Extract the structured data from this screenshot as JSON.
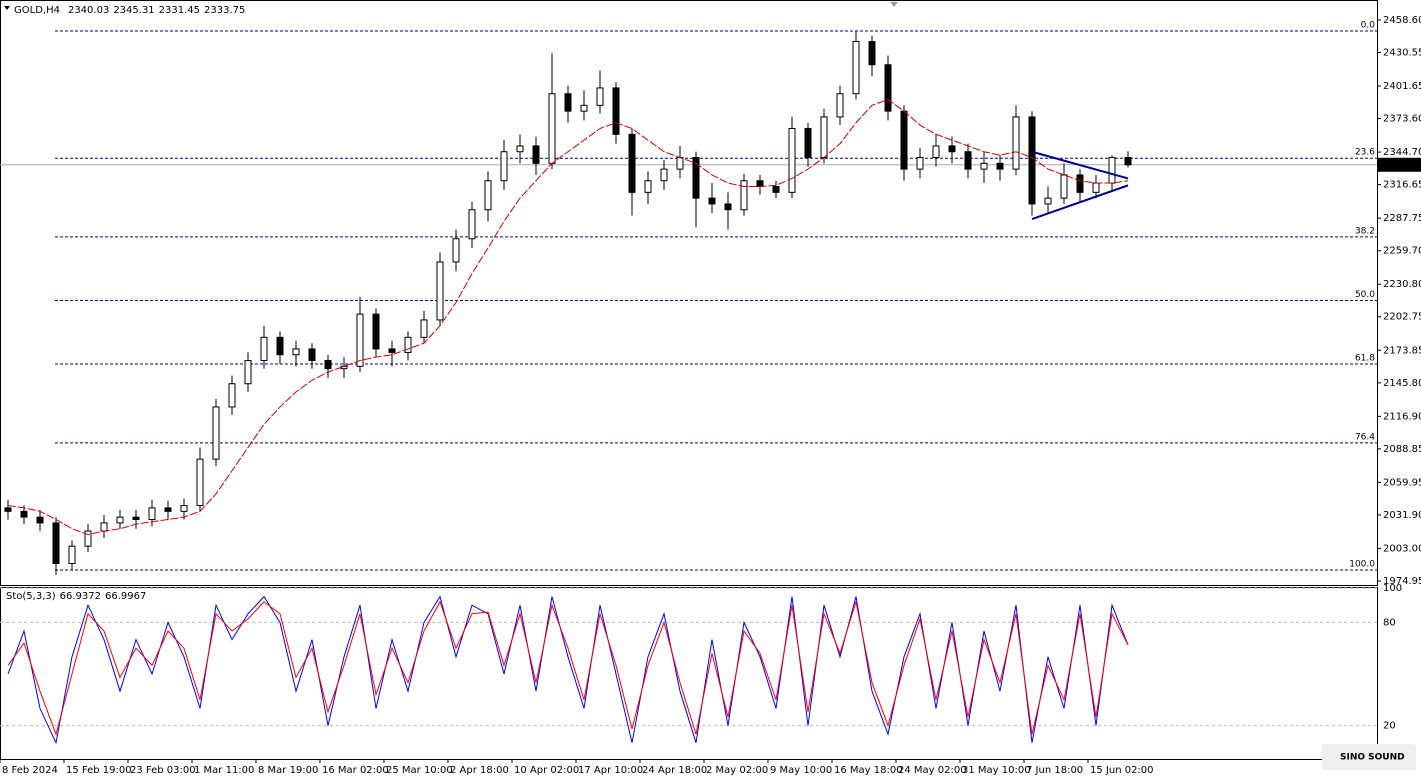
{
  "chart_data": {
    "type": "candlestick",
    "symbol": "GOLD,H4",
    "categories": [
      "8 Feb 2024",
      null,
      null,
      null,
      "15 Feb 19:00",
      null,
      null,
      null,
      "23 Feb 03:00",
      null,
      null,
      null,
      "1 Mar 11:00",
      null,
      null,
      null,
      "8 Mar 19:00",
      null,
      null,
      null,
      "16 Mar 02:00",
      null,
      null,
      null,
      "25 Mar 10:00",
      null,
      null,
      null,
      "2 Apr 18:00",
      null,
      null,
      null,
      "10 Apr 02:00",
      null,
      null,
      null,
      "17 Apr 10:00",
      null,
      null,
      null,
      "24 Apr 18:00",
      null,
      null,
      null,
      "2 May 02:00",
      null,
      null,
      null,
      "9 May 10:00",
      null,
      null,
      null,
      "16 May 18:00",
      null,
      null,
      null,
      "24 May 02:00",
      null,
      null,
      null,
      "31 May 10:00",
      null,
      null,
      null,
      "7 Jun 18:00",
      null,
      null,
      null,
      "15 Jun 02:00",
      null,
      null
    ],
    "open": [
      2038,
      2035,
      2030,
      2025,
      1990,
      2005,
      2018,
      2025,
      2030,
      2028,
      2038,
      2035,
      2040,
      2080,
      2125,
      2145,
      2165,
      2185,
      2170,
      2175,
      2165,
      2158,
      2160,
      2205,
      2175,
      2172,
      2185,
      2200,
      2250,
      2270,
      2295,
      2320,
      2345,
      2350,
      2335,
      2395,
      2380,
      2385,
      2400,
      2360,
      2310,
      2320,
      2330,
      2340,
      2305,
      2300,
      2295,
      2320,
      2315,
      2310,
      2365,
      2340,
      2375,
      2395,
      2440,
      2420,
      2380,
      2330,
      2340,
      2350,
      2345,
      2330,
      2335,
      2330,
      2375,
      2300,
      2305,
      2325,
      2310,
      2318,
      2340.03
    ],
    "high": [
      2045,
      2040,
      2036,
      2030,
      2010,
      2024,
      2032,
      2036,
      2036,
      2045,
      2044,
      2046,
      2090,
      2132,
      2152,
      2172,
      2195,
      2190,
      2182,
      2180,
      2170,
      2168,
      2220,
      2210,
      2182,
      2190,
      2208,
      2258,
      2278,
      2302,
      2328,
      2355,
      2360,
      2358,
      2430,
      2402,
      2398,
      2415,
      2405,
      2365,
      2328,
      2338,
      2350,
      2345,
      2318,
      2310,
      2326,
      2325,
      2320,
      2375,
      2370,
      2382,
      2402,
      2449,
      2445,
      2428,
      2385,
      2348,
      2360,
      2358,
      2352,
      2345,
      2342,
      2385,
      2380,
      2315,
      2335,
      2330,
      2325,
      2342,
      2345.31
    ],
    "low": [
      2028,
      2024,
      2018,
      1980,
      1985,
      2000,
      2012,
      2020,
      2020,
      2022,
      2028,
      2028,
      2035,
      2074,
      2118,
      2138,
      2158,
      2162,
      2160,
      2158,
      2150,
      2150,
      2155,
      2168,
      2160,
      2165,
      2180,
      2195,
      2242,
      2262,
      2285,
      2312,
      2335,
      2325,
      2330,
      2370,
      2372,
      2378,
      2352,
      2290,
      2300,
      2312,
      2322,
      2280,
      2292,
      2278,
      2290,
      2308,
      2305,
      2305,
      2332,
      2335,
      2368,
      2390,
      2410,
      2372,
      2320,
      2322,
      2332,
      2335,
      2322,
      2318,
      2320,
      2325,
      2290,
      2292,
      2300,
      2302,
      2305,
      2312,
      2331.45
    ],
    "close": [
      2035,
      2030,
      2025,
      1990,
      2005,
      2018,
      2025,
      2030,
      2028,
      2038,
      2035,
      2040,
      2080,
      2125,
      2145,
      2165,
      2185,
      2170,
      2175,
      2165,
      2158,
      2160,
      2205,
      2175,
      2172,
      2185,
      2200,
      2250,
      2270,
      2295,
      2320,
      2345,
      2350,
      2335,
      2395,
      2380,
      2385,
      2400,
      2360,
      2310,
      2320,
      2330,
      2340,
      2305,
      2300,
      2295,
      2320,
      2315,
      2310,
      2365,
      2340,
      2375,
      2395,
      2440,
      2420,
      2380,
      2330,
      2340,
      2350,
      2345,
      2330,
      2335,
      2330,
      2375,
      2300,
      2305,
      2325,
      2310,
      2318,
      2340,
      2333.75
    ],
    "ylim": [
      1971.5,
      2475.8
    ],
    "yticks": [
      {
        "value": 2458.6,
        "label": "2458.60"
      },
      2430.55,
      2401.65,
      {
        "value": 2373.6,
        "label": "2373.60"
      },
      {
        "value": 2344.7,
        "label": "2344.70"
      },
      2316.65,
      2287.75,
      {
        "value": 2259.7,
        "label": "2259.70"
      },
      {
        "value": 2230.8,
        "label": "2230.80"
      },
      2202.75,
      2173.85,
      {
        "value": 2145.8,
        "label": "2145.80"
      },
      {
        "value": 2116.9,
        "label": "2116.90"
      },
      2088.85,
      2059.95,
      {
        "value": 2031.9,
        "label": "2031.90"
      },
      {
        "value": 2003,
        "label": "2003.00"
      },
      1974.95
    ],
    "ma": {
      "color": "#cc0000",
      "values": [
        2040,
        2038,
        2035,
        2028,
        2020,
        2015,
        2018,
        2020,
        2024,
        2026,
        2028,
        2030,
        2035,
        2050,
        2070,
        2090,
        2110,
        2125,
        2138,
        2148,
        2155,
        2160,
        2165,
        2168,
        2170,
        2175,
        2180,
        2195,
        2215,
        2240,
        2262,
        2285,
        2305,
        2320,
        2335,
        2345,
        2355,
        2365,
        2370,
        2365,
        2355,
        2345,
        2340,
        2335,
        2325,
        2318,
        2315,
        2315,
        2316,
        2322,
        2330,
        2340,
        2352,
        2370,
        2385,
        2390,
        2380,
        2368,
        2360,
        2355,
        2350,
        2345,
        2342,
        2345,
        2340,
        2330,
        2325,
        2320,
        2318,
        2318,
        2320
      ]
    },
    "fib_color": "#00008b",
    "fib_levels": [
      {
        "label": "0.0",
        "value": 2449.1
      },
      {
        "label": "23.6",
        "value": 2339.4
      },
      {
        "label": "38.2",
        "value": 2271.6
      },
      {
        "label": "50.0",
        "value": 2216.8
      },
      {
        "label": "61.8",
        "value": 2162
      },
      {
        "label": "76.4",
        "value": 2094
      },
      {
        "label": "100.0",
        "value": 1984.4
      }
    ],
    "trendline_color": "#00008b",
    "trendlines": [
      {
        "x": [
          64,
          70
        ],
        "y": [
          2345,
          2322
        ]
      },
      {
        "x": [
          64,
          70
        ],
        "y": [
          2287,
          2316
        ]
      }
    ],
    "indicator": {
      "name": "Sto(5,3,3)",
      "ylim": [
        0,
        100
      ],
      "yticks": [
        100,
        80,
        20
      ],
      "series": [
        {
          "color": "#0000ff",
          "values": [
            50,
            75,
            30,
            10,
            60,
            90,
            70,
            40,
            70,
            50,
            80,
            60,
            30,
            90,
            70,
            85,
            95,
            80,
            40,
            70,
            20,
            60,
            90,
            30,
            70,
            40,
            80,
            95,
            60,
            90,
            85,
            50,
            90,
            40,
            95,
            60,
            30,
            90,
            50,
            10,
            60,
            85,
            40,
            10,
            70,
            20,
            80,
            60,
            30,
            95,
            20,
            90,
            60,
            95,
            40,
            15,
            60,
            85,
            30,
            80,
            20,
            75,
            40,
            90,
            10,
            60,
            30,
            90,
            20,
            90,
            66.9372
          ]
        },
        {
          "color": "#ff0000",
          "values": [
            55,
            68,
            40,
            15,
            50,
            85,
            75,
            48,
            65,
            55,
            75,
            65,
            35,
            85,
            75,
            82,
            92,
            85,
            48,
            65,
            28,
            55,
            85,
            38,
            65,
            45,
            75,
            92,
            65,
            85,
            86,
            55,
            85,
            45,
            90,
            65,
            35,
            85,
            55,
            18,
            55,
            80,
            45,
            15,
            62,
            25,
            75,
            62,
            35,
            90,
            28,
            85,
            62,
            92,
            45,
            20,
            55,
            82,
            35,
            75,
            25,
            70,
            45,
            85,
            15,
            55,
            35,
            85,
            25,
            85,
            66.9967
          ]
        }
      ]
    },
    "watermark": "SINO SOUND"
  }
}
